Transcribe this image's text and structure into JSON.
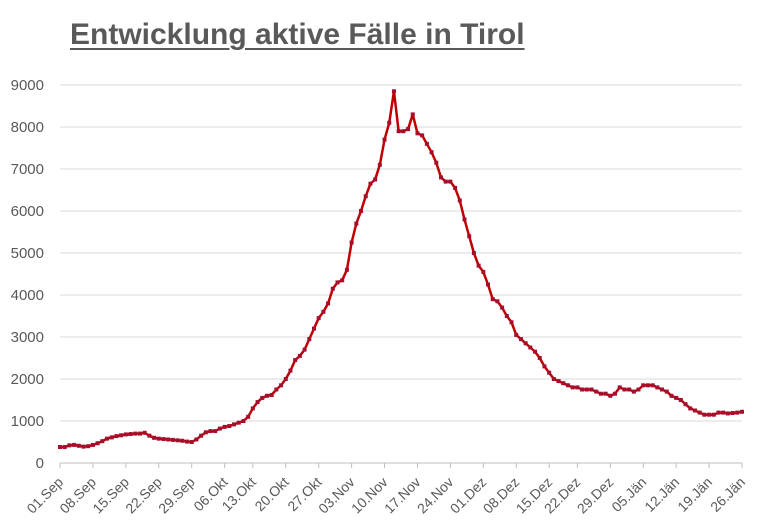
{
  "title": "Entwicklung aktive Fälle in Tirol",
  "colors": {
    "line": "#c00000",
    "marker": "#a50f2d",
    "grid": "#d9d9d9",
    "text": "#595959"
  },
  "chart_data": {
    "type": "line",
    "title": "Entwicklung aktive Fälle in Tirol",
    "xlabel": "",
    "ylabel": "",
    "ylim": [
      0,
      9000
    ],
    "yticks": [
      0,
      1000,
      2000,
      3000,
      4000,
      5000,
      6000,
      7000,
      8000,
      9000
    ],
    "grid": true,
    "legend": "none",
    "xtick_labels": [
      "01.Sep",
      "08.Sep",
      "15.Sep",
      "22.Sep",
      "29.Sep",
      "06.Okt",
      "13.Okt",
      "20.Okt",
      "27.Okt",
      "03.Nov",
      "10.Nov",
      "17.Nov",
      "24.Nov",
      "01.Dez",
      "08.Dez",
      "15.Dez",
      "22.Dez",
      "29.Dez",
      "05.Jän",
      "12.Jän",
      "19.Jän",
      "26.Jän"
    ],
    "series": [
      {
        "name": "",
        "values": [
          380,
          380,
          420,
          430,
          410,
          390,
          400,
          430,
          470,
          520,
          580,
          610,
          640,
          660,
          680,
          690,
          700,
          700,
          720,
          650,
          600,
          580,
          570,
          560,
          550,
          540,
          530,
          510,
          500,
          560,
          650,
          730,
          760,
          760,
          820,
          860,
          880,
          920,
          960,
          1000,
          1100,
          1300,
          1450,
          1550,
          1600,
          1620,
          1750,
          1850,
          2000,
          2200,
          2450,
          2550,
          2700,
          2950,
          3200,
          3450,
          3600,
          3800,
          4150,
          4300,
          4350,
          4600,
          5250,
          5700,
          6000,
          6350,
          6650,
          6750,
          7100,
          7700,
          8100,
          8850,
          7900,
          7900,
          7950,
          8300,
          7850,
          7800,
          7600,
          7400,
          7150,
          6800,
          6700,
          6700,
          6550,
          6250,
          5800,
          5400,
          5000,
          4700,
          4550,
          4250,
          3900,
          3850,
          3700,
          3500,
          3350,
          3050,
          2950,
          2850,
          2750,
          2650,
          2500,
          2300,
          2150,
          2000,
          1950,
          1900,
          1850,
          1800,
          1800,
          1750,
          1750,
          1750,
          1700,
          1650,
          1650,
          1600,
          1650,
          1800,
          1750,
          1750,
          1700,
          1750,
          1850,
          1850,
          1850,
          1800,
          1750,
          1700,
          1600,
          1550,
          1500,
          1400,
          1300,
          1250,
          1200,
          1150,
          1150,
          1150,
          1200,
          1200,
          1180,
          1190,
          1200,
          1220
        ]
      }
    ]
  }
}
